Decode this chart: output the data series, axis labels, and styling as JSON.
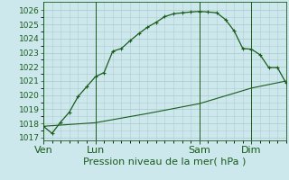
{
  "title": "Pression niveau de la mer( hPa )",
  "background_color": "#cce8ec",
  "grid_color": "#b0cdd2",
  "line_color": "#1a5c1a",
  "ylim": [
    1016.8,
    1026.6
  ],
  "yticks": [
    1017,
    1018,
    1019,
    1020,
    1021,
    1022,
    1023,
    1024,
    1025,
    1026
  ],
  "yticks_minor": [
    1017.5,
    1018.5,
    1019.5,
    1020.5,
    1021.5,
    1022.5,
    1023.5,
    1024.5,
    1025.5
  ],
  "day_labels": [
    "Ven",
    "Lun",
    "Sam",
    "Dim"
  ],
  "day_positions": [
    0,
    6,
    18,
    24
  ],
  "xlim": [
    0,
    28
  ],
  "series1_x": [
    0,
    1,
    2,
    3,
    4,
    5,
    6,
    7,
    8,
    9,
    10,
    11,
    12,
    13,
    14,
    15,
    16,
    17,
    18,
    19,
    20,
    21,
    22,
    23,
    24,
    25,
    26,
    27,
    28
  ],
  "series1_y": [
    1017.8,
    1017.3,
    1018.1,
    1018.8,
    1019.9,
    1020.6,
    1021.3,
    1021.6,
    1023.1,
    1023.3,
    1023.85,
    1024.35,
    1024.8,
    1025.15,
    1025.55,
    1025.75,
    1025.82,
    1025.88,
    1025.92,
    1025.88,
    1025.82,
    1025.35,
    1024.55,
    1023.3,
    1023.25,
    1022.85,
    1021.95,
    1021.95,
    1020.85
  ],
  "series2_x": [
    0,
    6,
    12,
    18,
    24,
    28
  ],
  "series2_y": [
    1017.8,
    1018.05,
    1018.7,
    1019.4,
    1020.5,
    1021.0
  ],
  "xlabel_fontsize": 8,
  "tick_fontsize": 6.5,
  "title_fontsize": 8
}
